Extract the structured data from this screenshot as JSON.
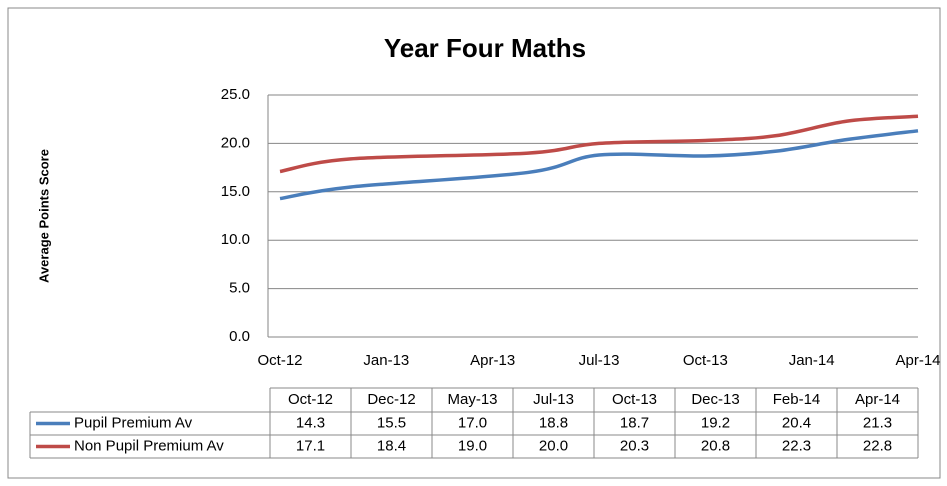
{
  "chart_data": {
    "type": "line",
    "title": "Year Four Maths",
    "y_label": "Average Points Score",
    "x": [
      "Oct-12",
      "Dec-12",
      "May-13",
      "Jul-13",
      "Oct-13",
      "Dec-13",
      "Feb-14",
      "Apr-14"
    ],
    "xlim": [
      "Oct-12",
      "Apr-14"
    ],
    "xticks": [
      "Oct-12",
      "Jan-13",
      "Apr-13",
      "Jul-13",
      "Oct-13",
      "Jan-14",
      "Apr-14"
    ],
    "ylim": [
      0,
      25
    ],
    "yticks": [
      {
        "value": 0,
        "label": "0.0"
      },
      {
        "value": 5,
        "label": "5.0"
      },
      {
        "value": 10,
        "label": "10.0"
      },
      {
        "value": 15,
        "label": "15.0"
      },
      {
        "value": 20,
        "label": "20.0"
      },
      {
        "value": 25,
        "label": "25.0"
      }
    ],
    "grid": true,
    "series": [
      {
        "name": "Pupil Premium Av",
        "color": "#4a7ebb",
        "values": [
          14.3,
          15.5,
          17.0,
          18.8,
          18.7,
          19.2,
          20.4,
          21.3
        ],
        "value_labels": [
          "14.3",
          "15.5",
          "17.0",
          "18.8",
          "18.7",
          "19.2",
          "20.4",
          "21.3"
        ]
      },
      {
        "name": "Non Pupil Premium Av",
        "color": "#be4b48",
        "values": [
          17.1,
          18.4,
          19.0,
          20.0,
          20.3,
          20.8,
          22.3,
          22.8
        ],
        "value_labels": [
          "17.1",
          "18.4",
          "19.0",
          "20.0",
          "20.3",
          "20.8",
          "22.3",
          "22.8"
        ]
      }
    ]
  }
}
